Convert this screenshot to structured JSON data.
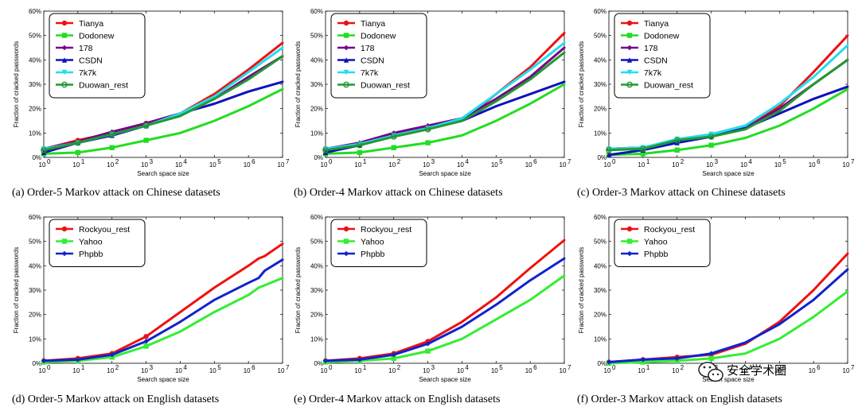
{
  "watermark": "安全学术圈",
  "colors": {
    "Tianya": "#ee1111",
    "Dodonew": "#22dd22",
    "178": "#770088",
    "CSDN": "#1111bb",
    "7k7k": "#22ddee",
    "Duowan_rest": "#229933",
    "Rockyou_rest": "#ee1111",
    "Yahoo": "#33ee33",
    "Phpbb": "#1122cc"
  },
  "chart_data": [
    {
      "type": "line",
      "x_scale": "log",
      "xlim": [
        1,
        10000000
      ],
      "ylim": [
        0,
        60
      ],
      "xlabel": "Search space size",
      "ylabel": "Fraction of cracked passwords",
      "x_ticks": [
        "0",
        "1",
        "2",
        "3",
        "4",
        "5",
        "6",
        "7"
      ],
      "y_ticks": [
        "0%",
        "10%",
        "20%",
        "30%",
        "40%",
        "50%",
        "60%"
      ],
      "caption": "(a) Order-5 Markov attack on Chinese datasets",
      "x": [
        1,
        10,
        100,
        1000,
        10000,
        100000,
        1000000,
        10000000
      ],
      "series": [
        {
          "name": "Tianya",
          "values": [
            3.5,
            7,
            10,
            14,
            18,
            26,
            36,
            47
          ]
        },
        {
          "name": "Dodonew",
          "values": [
            1.5,
            2,
            4,
            7,
            10,
            15,
            21,
            28
          ]
        },
        {
          "name": "178",
          "values": [
            3.5,
            6.5,
            10.5,
            14,
            18,
            24,
            33,
            41.5
          ]
        },
        {
          "name": "CSDN",
          "values": [
            2,
            6,
            9,
            13,
            18,
            22,
            27,
            31
          ]
        },
        {
          "name": "7k7k",
          "values": [
            3.5,
            6,
            9.5,
            13,
            18,
            25,
            35,
            45
          ]
        },
        {
          "name": "Duowan_rest",
          "values": [
            3,
            6,
            9.5,
            13,
            17,
            24,
            32,
            41.5
          ]
        }
      ]
    },
    {
      "type": "line",
      "x_scale": "log",
      "xlim": [
        1,
        10000000
      ],
      "ylim": [
        0,
        60
      ],
      "xlabel": "Search space size",
      "ylabel": "Fraction of cracked passwords",
      "x_ticks": [
        "0",
        "1",
        "2",
        "3",
        "4",
        "5",
        "6",
        "7"
      ],
      "y_ticks": [
        "0%",
        "10%",
        "20%",
        "30%",
        "40%",
        "50%",
        "60%"
      ],
      "caption": "(b) Order-4 Markov attack on Chinese datasets",
      "x": [
        1,
        10,
        100,
        1000,
        10000,
        100000,
        1000000,
        10000000
      ],
      "series": [
        {
          "name": "Tianya",
          "values": [
            3.5,
            5.5,
            9,
            12,
            15,
            26,
            37,
            51
          ]
        },
        {
          "name": "Dodonew",
          "values": [
            1.5,
            2,
            4,
            6,
            9,
            15,
            22,
            30
          ]
        },
        {
          "name": "178",
          "values": [
            3.5,
            6,
            10,
            13,
            16,
            24,
            33,
            45
          ]
        },
        {
          "name": "CSDN",
          "values": [
            2,
            5,
            9,
            12,
            15,
            21,
            26,
            31
          ]
        },
        {
          "name": "7k7k",
          "values": [
            3.5,
            5.5,
            9,
            12,
            16,
            26,
            36,
            47
          ]
        },
        {
          "name": "Duowan_rest",
          "values": [
            3,
            5,
            8.5,
            11.5,
            15,
            23,
            32,
            43
          ]
        }
      ]
    },
    {
      "type": "line",
      "x_scale": "log",
      "xlim": [
        1,
        10000000
      ],
      "ylim": [
        0,
        60
      ],
      "xlabel": "Search space size",
      "ylabel": "Fraction of cracked passwords",
      "x_ticks": [
        "0",
        "1",
        "2",
        "3",
        "4",
        "5",
        "6",
        "7"
      ],
      "y_ticks": [
        "0%",
        "10%",
        "20%",
        "30%",
        "40%",
        "50%",
        "60%"
      ],
      "caption": "(c) Order-3 Markov attack on Chinese datasets",
      "x": [
        1,
        10,
        100,
        1000,
        10000,
        100000,
        1000000,
        10000000
      ],
      "series": [
        {
          "name": "Tianya",
          "values": [
            3.5,
            4,
            7,
            9.5,
            13,
            21,
            35,
            50
          ]
        },
        {
          "name": "Dodonew",
          "values": [
            1,
            1.5,
            3,
            5,
            8,
            13,
            20,
            28
          ]
        },
        {
          "name": "178",
          "values": [
            3.5,
            4,
            7,
            9,
            12,
            20,
            30,
            40
          ]
        },
        {
          "name": "CSDN",
          "values": [
            1,
            3,
            6,
            8.5,
            12,
            18,
            24,
            29
          ]
        },
        {
          "name": "7k7k",
          "values": [
            3.5,
            4,
            7.5,
            9.5,
            13,
            22,
            33,
            46
          ]
        },
        {
          "name": "Duowan_rest",
          "values": [
            3,
            3.5,
            7,
            8.5,
            11.5,
            19,
            30,
            40
          ]
        }
      ]
    },
    {
      "type": "line",
      "x_scale": "log",
      "xlim": [
        1,
        10000000
      ],
      "ylim": [
        0,
        60
      ],
      "xlabel": "Search space size",
      "ylabel": "Fraction of cracked passwords",
      "x_ticks": [
        "0",
        "1",
        "2",
        "3",
        "4",
        "5",
        "6",
        "7"
      ],
      "y_ticks": [
        "0%",
        "10%",
        "20%",
        "30%",
        "40%",
        "50%",
        "60%"
      ],
      "caption": "(d) Order-5 Markov attack on English datasets",
      "x": [
        1,
        10,
        100,
        1000,
        10000,
        100000,
        1000000,
        2000000,
        3000000,
        10000000
      ],
      "series": [
        {
          "name": "Rockyou_rest",
          "values": [
            1,
            2,
            4,
            11,
            21,
            31,
            40,
            43,
            44,
            49
          ]
        },
        {
          "name": "Yahoo",
          "values": [
            0.5,
            1,
            2.5,
            7,
            13,
            21,
            28,
            31,
            32,
            35
          ]
        },
        {
          "name": "Phpbb",
          "values": [
            1,
            1.5,
            3.5,
            9,
            17,
            26,
            33,
            35,
            38,
            42.5
          ]
        }
      ]
    },
    {
      "type": "line",
      "x_scale": "log",
      "xlim": [
        1,
        10000000
      ],
      "ylim": [
        0,
        60
      ],
      "xlabel": "Search space size",
      "ylabel": "Fraction of cracked passwords",
      "x_ticks": [
        "0",
        "1",
        "2",
        "3",
        "4",
        "5",
        "6",
        "7"
      ],
      "y_ticks": [
        "0%",
        "10%",
        "20%",
        "30%",
        "40%",
        "50%",
        "60%"
      ],
      "caption": "(e) Order-4 Markov attack on English datasets",
      "x": [
        1,
        10,
        100,
        1000,
        10000,
        100000,
        1000000,
        10000000
      ],
      "series": [
        {
          "name": "Rockyou_rest",
          "values": [
            1,
            2,
            4,
            9,
            17,
            27,
            39,
            50.5
          ]
        },
        {
          "name": "Yahoo",
          "values": [
            0.5,
            1,
            2,
            5,
            10,
            18,
            26,
            36
          ]
        },
        {
          "name": "Phpbb",
          "values": [
            1,
            1.5,
            3.5,
            8,
            15,
            24,
            34,
            43
          ]
        }
      ]
    },
    {
      "type": "line",
      "x_scale": "log",
      "xlim": [
        1,
        10000000
      ],
      "ylim": [
        0,
        60
      ],
      "xlabel": "Search space size",
      "ylabel": "Fraction of cracked passwords",
      "x_ticks": [
        "0",
        "1",
        "2",
        "3",
        "4",
        "5",
        "6",
        "7"
      ],
      "y_ticks": [
        "0%",
        "10%",
        "20%",
        "30%",
        "40%",
        "50%",
        "60%"
      ],
      "caption": "(f) Order-3 Markov attack on English datasets",
      "x": [
        1,
        10,
        100,
        1000,
        10000,
        100000,
        1000000,
        10000000
      ],
      "series": [
        {
          "name": "Rockyou_rest",
          "values": [
            0.5,
            1.5,
            2.5,
            3.5,
            8,
            17,
            30,
            45
          ]
        },
        {
          "name": "Yahoo",
          "values": [
            0,
            0.5,
            1,
            2,
            4,
            10,
            19,
            29.5
          ]
        },
        {
          "name": "Phpbb",
          "values": [
            0.5,
            1.5,
            2,
            4,
            8.5,
            16,
            26,
            38.5
          ]
        }
      ]
    }
  ]
}
